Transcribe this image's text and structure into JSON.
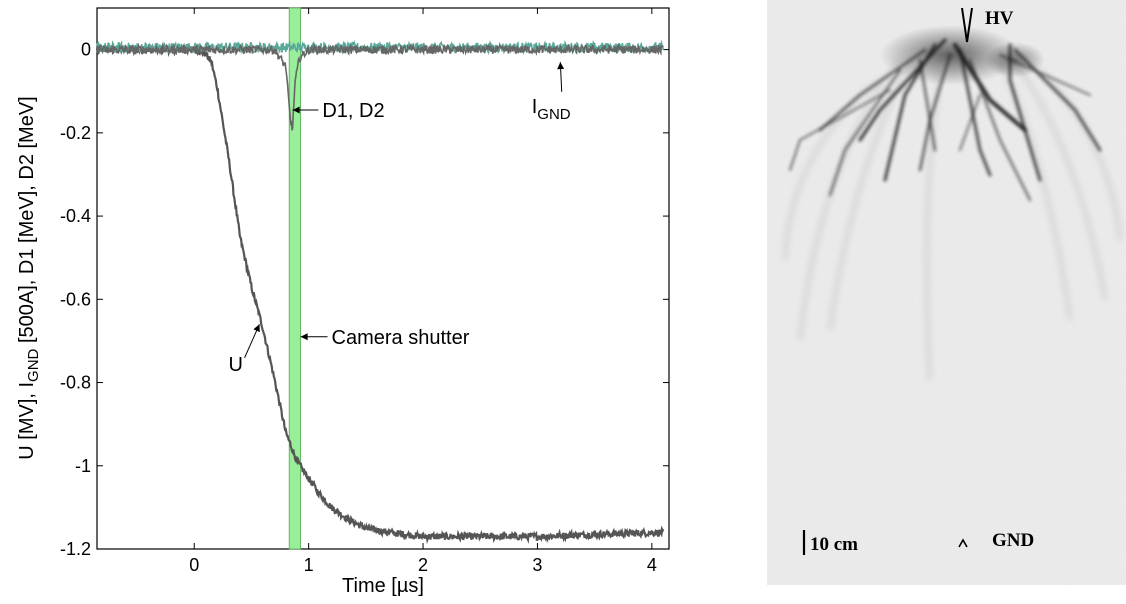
{
  "chart_data": {
    "type": "line",
    "xlabel_prefix": "Time [",
    "xlabel_unit": "µs",
    "xlabel_suffix": "]",
    "ylabel_part1": "U [MV], I",
    "ylabel_sub": "GND",
    "ylabel_part2": " [500A], D1 [MeV], D2 [MeV]",
    "xlim": [
      -0.85,
      4.15
    ],
    "ylim": [
      -1.2,
      0.1
    ],
    "x_ticks": [
      0,
      1,
      2,
      3,
      4
    ],
    "x_tick_labels": [
      "0",
      "1",
      "2",
      "3",
      "4"
    ],
    "y_ticks": [
      0,
      -0.2,
      -0.4,
      -0.6,
      -0.8,
      -1,
      -1.2
    ],
    "y_tick_labels": [
      "0",
      "-0.2",
      "-0.4",
      "-0.6",
      "-0.8",
      "-1",
      "-1.2"
    ],
    "grid": false,
    "series": [
      {
        "name": "U",
        "color": "#555555",
        "x": [
          -0.85,
          0.0,
          0.1,
          0.15,
          0.2,
          0.3,
          0.4,
          0.5,
          0.6,
          0.7,
          0.8,
          0.9,
          1.0,
          1.1,
          1.2,
          1.35,
          1.5,
          1.7,
          2.0,
          2.5,
          3.0,
          3.5,
          4.1
        ],
        "y": [
          0.0,
          0.0,
          -0.01,
          -0.03,
          -0.09,
          -0.26,
          -0.45,
          -0.57,
          -0.67,
          -0.79,
          -0.92,
          -0.99,
          -1.03,
          -1.07,
          -1.1,
          -1.13,
          -1.15,
          -1.16,
          -1.17,
          -1.17,
          -1.17,
          -1.165,
          -1.16
        ]
      },
      {
        "name": "I",
        "name_sub": "GND",
        "color": "#5aa89a",
        "x": [
          -0.85,
          4.1
        ],
        "y": [
          0.005,
          0.005
        ]
      },
      {
        "name": "D1, D2",
        "color": "#666666",
        "x": [
          -0.85,
          0.7,
          0.8,
          0.84,
          0.86,
          0.88,
          0.92,
          1.0,
          4.1
        ],
        "y": [
          0.0,
          0.0,
          -0.04,
          -0.17,
          -0.19,
          -0.08,
          -0.02,
          0.0,
          0.0
        ]
      }
    ],
    "shutter": {
      "label": "Camera shutter",
      "x_start": 0.83,
      "x_end": 0.93,
      "color": "#99ee99"
    },
    "annotations": [
      {
        "label": "U",
        "text_x": 0.3,
        "text_y": -0.755,
        "arrow_to_x": 0.57,
        "arrow_to_y": -0.66
      },
      {
        "label": "D1, D2",
        "text_x": 1.12,
        "text_y": -0.145,
        "arrow_to_x": 0.86,
        "arrow_to_y": -0.145
      },
      {
        "label": "I",
        "label_sub": "GND",
        "text_x": 2.95,
        "text_y": -0.135,
        "arrow_to_x": 3.2,
        "arrow_to_y": -0.03
      },
      {
        "label": "Camera shutter",
        "text_x": 1.2,
        "text_y": -0.69,
        "arrow_to_x": 0.93,
        "arrow_to_y": -0.69
      }
    ]
  },
  "photo": {
    "hv_label": "HV",
    "gnd_label": "GND",
    "scale_label": "10 cm",
    "background": "#efefef",
    "streamer_color": "#1a1a1a"
  }
}
